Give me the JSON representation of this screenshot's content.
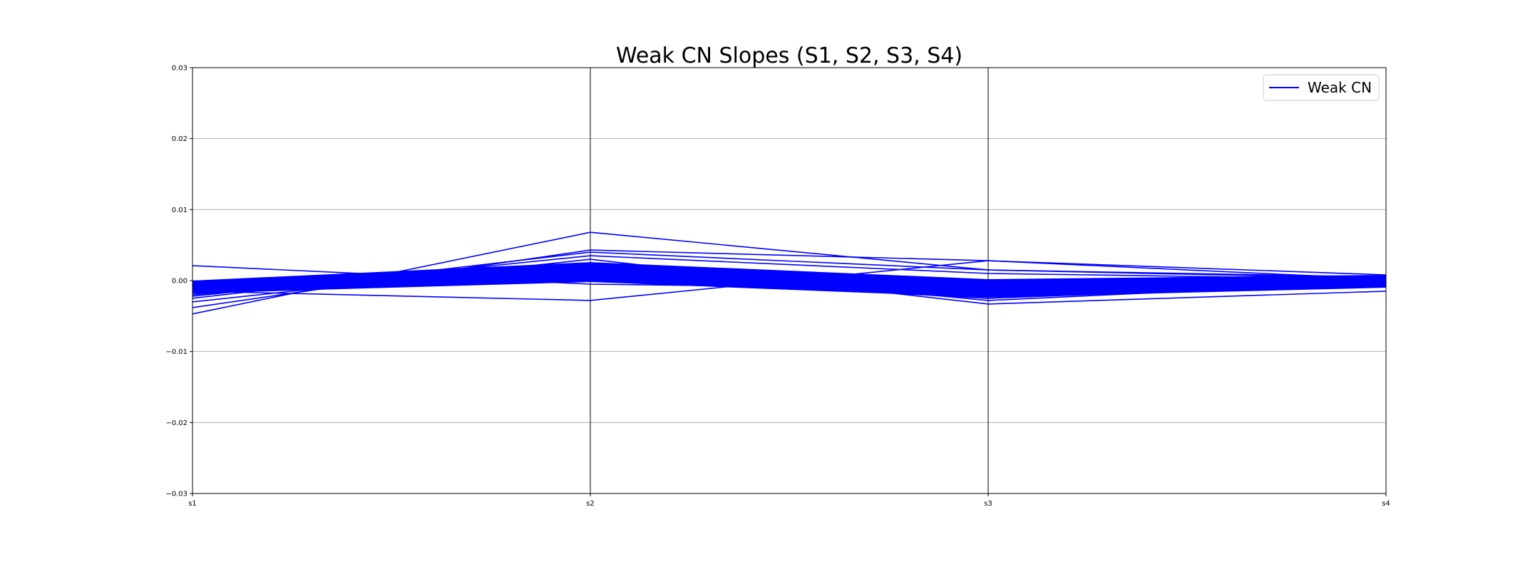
{
  "chart_data": {
    "type": "line",
    "subtype": "parallel-coordinates",
    "title": "Weak CN Slopes (S1, S2, S3, S4)",
    "xlabel": "",
    "ylabel": "",
    "categories": [
      "s1",
      "s2",
      "s3",
      "s4"
    ],
    "ylim": [
      -0.03,
      0.03
    ],
    "yticks": [
      0.03,
      0.02,
      0.01,
      0.0,
      -0.01,
      -0.02,
      -0.03
    ],
    "ytick_labels": [
      "0.03",
      "0.02",
      "0.01",
      "0.00",
      "−0.01",
      "−0.02",
      "−0.03"
    ],
    "grid": "horizontal",
    "legend": {
      "position": "top-right",
      "entries": [
        "Weak CN"
      ]
    },
    "line_color": "#0000ff",
    "series": [
      {
        "name": "Weak CN",
        "values": [
          0.0021,
          -0.0005,
          -0.0012,
          -0.0002
        ]
      },
      {
        "name": "Weak CN",
        "values": [
          -0.0047,
          0.0068,
          0.0015,
          0.0005
        ]
      },
      {
        "name": "Weak CN",
        "values": [
          -0.0038,
          0.0043,
          0.0028,
          0.0008
        ]
      },
      {
        "name": "Weak CN",
        "values": [
          -0.0025,
          0.004,
          0.0015,
          0.0003
        ]
      },
      {
        "name": "Weak CN",
        "values": [
          -0.0022,
          0.0035,
          0.001,
          0.0002
        ]
      },
      {
        "name": "Weak CN",
        "values": [
          -0.003,
          0.003,
          -0.0033,
          -0.0015
        ]
      },
      {
        "name": "Weak CN",
        "values": [
          -0.0015,
          -0.0028,
          0.0028,
          0.0002
        ]
      },
      {
        "name": "Weak CN",
        "values": [
          -0.0005,
          0.0025,
          -0.0015,
          -0.0005
        ]
      },
      {
        "name": "Weak CN",
        "values": [
          -0.0003,
          0.0022,
          -0.001,
          0.0
        ]
      },
      {
        "name": "Weak CN",
        "values": [
          -0.0008,
          0.002,
          -0.002,
          0.0005
        ]
      },
      {
        "name": "Weak CN",
        "values": [
          -0.001,
          0.0018,
          -0.0008,
          -0.0003
        ]
      },
      {
        "name": "Weak CN",
        "values": [
          -0.0012,
          0.0015,
          -0.0022,
          0.0
        ]
      },
      {
        "name": "Weak CN",
        "values": [
          -0.0004,
          0.0012,
          -0.0005,
          0.0003
        ]
      },
      {
        "name": "Weak CN",
        "values": [
          -0.0014,
          0.001,
          -0.0018,
          -0.0006
        ]
      },
      {
        "name": "Weak CN",
        "values": [
          -0.0006,
          0.0008,
          -0.0012,
          0.0001
        ]
      },
      {
        "name": "Weak CN",
        "values": [
          -0.0016,
          0.0005,
          -0.0025,
          -0.0004
        ]
      },
      {
        "name": "Weak CN",
        "values": [
          -0.0009,
          0.0003,
          -0.0007,
          0.0006
        ]
      },
      {
        "name": "Weak CN",
        "values": [
          -0.0018,
          0.0001,
          -0.0016,
          -0.0008
        ]
      },
      {
        "name": "Weak CN",
        "values": [
          -0.0002,
          -0.0001,
          -0.0003,
          0.0004
        ]
      },
      {
        "name": "Weak CN",
        "values": [
          -0.002,
          0.0024,
          -0.0028,
          -0.0002
        ]
      },
      {
        "name": "Weak CN",
        "values": [
          -0.0007,
          0.0016,
          -0.0014,
          0.0007
        ]
      },
      {
        "name": "Weak CN",
        "values": [
          -0.0011,
          0.0006,
          -0.0021,
          -0.0007
        ]
      }
    ]
  }
}
